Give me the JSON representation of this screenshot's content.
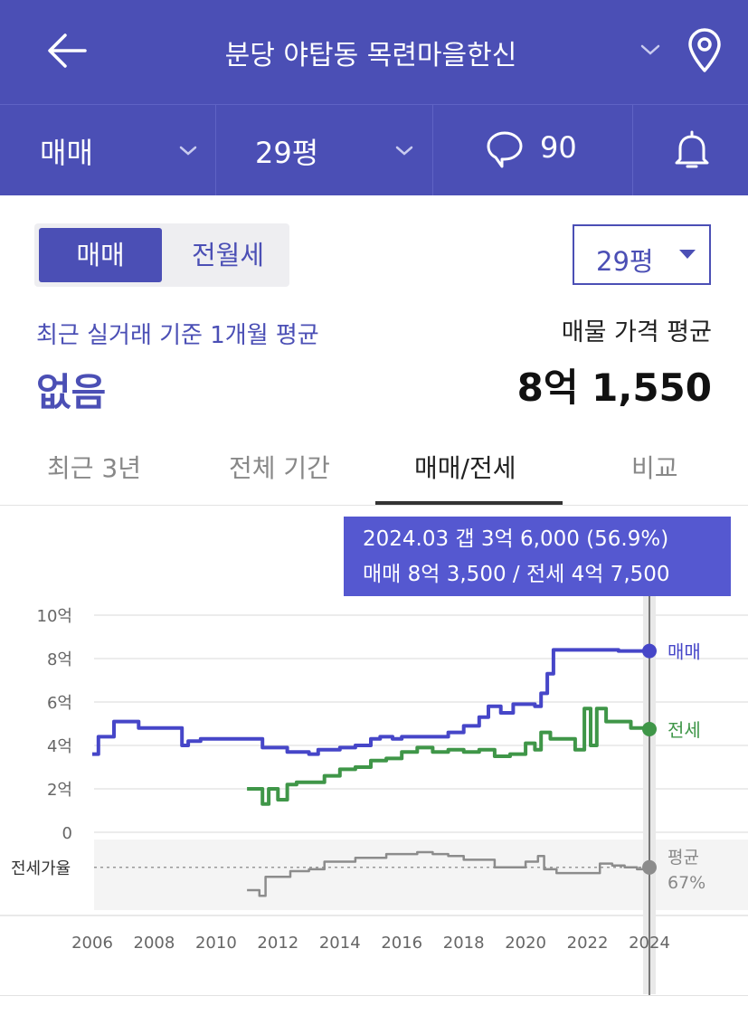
{
  "header": {
    "title": "분당 야탑동 목련마을한신",
    "back_icon": "arrow-left-icon",
    "location_icon": "map-pin-icon"
  },
  "subbar": {
    "trade_type": "매매",
    "area": "29평",
    "comment_count": "90",
    "comment_icon": "speech-bubble-icon",
    "alarm_icon": "bell-icon"
  },
  "deal_toggle": {
    "sale": "매매",
    "rent": "전월세"
  },
  "area_select": "29평",
  "summary": {
    "recent_label": "최근 실거래 기준 1개월 평균",
    "recent_value": "없음",
    "listing_label": "매물 가격 평균",
    "listing_value": "8억 1,550"
  },
  "tabs": [
    "최근 3년",
    "전체 기간",
    "매매/전세",
    "비교"
  ],
  "active_tab": 2,
  "tooltip": {
    "line1": "2024.03  갭 3억 6,000 (56.9%)",
    "line2": "매매 8억 3,500 / 전세 4억 7,500"
  },
  "colors": {
    "brand": "#4b4fb5",
    "sale": "#4646c8",
    "jeonse": "#3f9648",
    "ratio": "#8c8c8c",
    "tooltip": "#5558d0"
  },
  "chart_data": {
    "type": "line",
    "y_unit": "억",
    "y_ticks": [
      "10억",
      "8억",
      "6억",
      "4억",
      "2억",
      "0"
    ],
    "ylim": [
      0,
      10
    ],
    "x_ticks": [
      "2006",
      "2008",
      "2010",
      "2012",
      "2014",
      "2016",
      "2018",
      "2020",
      "2022",
      "2024"
    ],
    "xlim": [
      2006,
      2024.3
    ],
    "series": [
      {
        "name": "매매",
        "x": [
          2006.0,
          2006.2,
          2006.5,
          2006.7,
          2007.0,
          2007.5,
          2008.0,
          2008.4,
          2008.9,
          2009.1,
          2009.5,
          2010.0,
          2010.5,
          2011.0,
          2011.5,
          2012.0,
          2012.3,
          2012.6,
          2013.0,
          2013.3,
          2013.6,
          2014.0,
          2014.5,
          2015.0,
          2015.3,
          2015.7,
          2016.0,
          2016.5,
          2017.0,
          2017.5,
          2018.0,
          2018.5,
          2018.8,
          2019.2,
          2019.6,
          2020.0,
          2020.3,
          2020.5,
          2020.7,
          2020.9,
          2021.2,
          2021.6,
          2022.0,
          2022.5,
          2023.0,
          2023.5,
          2024.0
        ],
        "values": [
          3.6,
          4.4,
          4.4,
          5.1,
          5.1,
          4.8,
          4.8,
          4.8,
          4.0,
          4.2,
          4.3,
          4.3,
          4.3,
          4.3,
          3.9,
          3.9,
          3.7,
          3.7,
          3.6,
          3.8,
          3.8,
          3.9,
          4.0,
          4.3,
          4.4,
          4.3,
          4.4,
          4.4,
          4.4,
          4.6,
          4.9,
          5.3,
          5.8,
          5.5,
          5.9,
          5.9,
          5.8,
          6.4,
          7.3,
          8.4,
          8.4,
          8.4,
          8.4,
          8.4,
          8.35,
          8.35,
          8.35
        ]
      },
      {
        "name": "전세",
        "x": [
          2011.0,
          2011.3,
          2011.5,
          2011.7,
          2012.0,
          2012.3,
          2012.6,
          2013.0,
          2013.5,
          2014.0,
          2014.5,
          2015.0,
          2015.5,
          2016.0,
          2016.5,
          2017.0,
          2017.5,
          2018.0,
          2018.5,
          2019.0,
          2019.5,
          2020.0,
          2020.3,
          2020.5,
          2020.8,
          2021.0,
          2021.3,
          2021.6,
          2021.9,
          2022.1,
          2022.3,
          2022.6,
          2023.0,
          2023.4,
          2023.7,
          2024.0
        ],
        "values": [
          2.0,
          2.0,
          1.3,
          2.0,
          1.5,
          2.2,
          2.3,
          2.3,
          2.6,
          2.9,
          3.0,
          3.3,
          3.4,
          3.7,
          3.9,
          3.7,
          3.8,
          3.7,
          3.8,
          3.5,
          3.6,
          4.1,
          3.8,
          4.6,
          4.3,
          4.3,
          4.3,
          3.8,
          5.7,
          4.0,
          5.7,
          5.1,
          5.1,
          4.8,
          4.8,
          4.75
        ]
      },
      {
        "name": "전세가율",
        "x": [
          2011.0,
          2011.4,
          2011.6,
          2012.0,
          2012.4,
          2013.0,
          2013.5,
          2014.0,
          2014.5,
          2015.0,
          2015.5,
          2016.0,
          2016.5,
          2017.0,
          2017.5,
          2018.0,
          2018.5,
          2019.0,
          2019.5,
          2020.0,
          2020.4,
          2020.6,
          2021.0,
          2021.5,
          2022.0,
          2022.4,
          2022.8,
          2023.2,
          2023.6,
          2024.0
        ],
        "values": [
          55,
          52,
          62,
          62,
          65,
          66,
          70,
          70,
          72,
          72,
          74,
          74,
          75,
          74,
          73,
          71,
          71,
          67,
          67,
          70,
          73,
          66,
          64,
          64,
          64,
          69,
          68,
          67,
          66,
          67
        ]
      }
    ],
    "series_labels": {
      "sale": "매매",
      "jeonse": "전세"
    },
    "ratio_label": "전세가율",
    "ratio_avg_label": "평균",
    "ratio_avg_value": "67%",
    "ratio_avg": 67
  }
}
